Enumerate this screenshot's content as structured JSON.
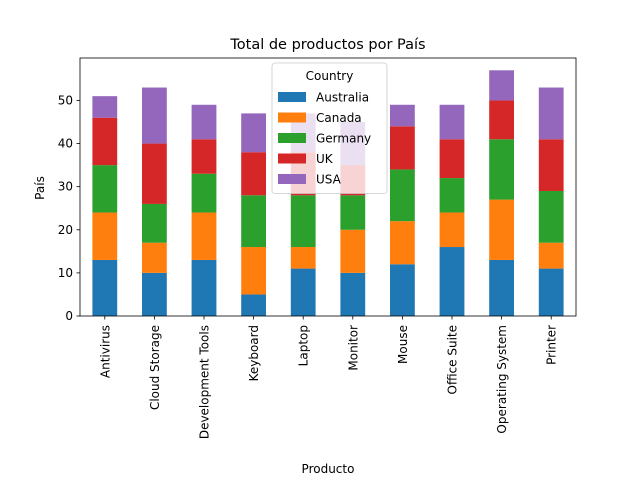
{
  "chart_data": {
    "type": "bar",
    "stacked": true,
    "title": "Total de productos por País",
    "xlabel": "Producto",
    "ylabel": "País",
    "ylim": [
      0,
      59.85
    ],
    "yticks": [
      0,
      10,
      20,
      30,
      40,
      50
    ],
    "categories": [
      "Antivirus",
      "Cloud Storage",
      "Development Tools",
      "Keyboard",
      "Laptop",
      "Monitor",
      "Mouse",
      "Office Suite",
      "Operating System",
      "Printer"
    ],
    "legend": {
      "title": "Country",
      "placement": "top-center"
    },
    "series": [
      {
        "name": "Australia",
        "color": "#1f77b4",
        "values": [
          13,
          10,
          13,
          5,
          11,
          10,
          12,
          16,
          13,
          11
        ]
      },
      {
        "name": "Canada",
        "color": "#ff7f0e",
        "values": [
          11,
          7,
          11,
          11,
          5,
          10,
          10,
          8,
          14,
          6
        ]
      },
      {
        "name": "Germany",
        "color": "#2ca02c",
        "values": [
          11,
          9,
          9,
          12,
          12,
          8,
          12,
          8,
          14,
          12
        ]
      },
      {
        "name": "UK",
        "color": "#d62728",
        "values": [
          11,
          14,
          8,
          10,
          10,
          7,
          10,
          9,
          9,
          12
        ]
      },
      {
        "name": "USA",
        "color": "#9467bd",
        "values": [
          5,
          13,
          8,
          9,
          9,
          10,
          5,
          8,
          7,
          12
        ]
      }
    ]
  }
}
